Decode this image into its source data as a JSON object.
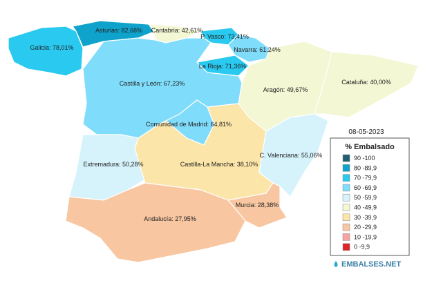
{
  "regions": [
    {
      "label": "Galicia: 78,01%",
      "color": "#29c9f0"
    },
    {
      "label": "Asturias: 82,68%",
      "color": "#0fa3cc"
    },
    {
      "label": "Cantabria: 42,61%",
      "color": "#f3f7d4"
    },
    {
      "label": "P. Vasco: 73,41%",
      "color": "#29c9f0"
    },
    {
      "label": "Navarra: 61,24%",
      "color": "#80dcfb"
    },
    {
      "label": "La Rioja: 71,36%",
      "color": "#29c9f0"
    },
    {
      "label": "Aragón: 49,67%",
      "color": "#f3f7d4"
    },
    {
      "label": "Cataluña: 40,00%",
      "color": "#f3f7d4"
    },
    {
      "label": "Castilla y León: 67,23%",
      "color": "#80dcfb"
    },
    {
      "label": "Comunidad de Madrid: 64,81%",
      "color": "#80dcfb"
    },
    {
      "label": "Extremadura: 50,28%",
      "color": "#d6f3fb"
    },
    {
      "label": "Castilla-La Mancha: 38,10%",
      "color": "#fbe5a8"
    },
    {
      "label": "C. Valenciana: 55,06%",
      "color": "#d6f3fb"
    },
    {
      "label": "Murcia: 28,38%",
      "color": "#f8c6a0"
    },
    {
      "label": "Andalucía: 27,95%",
      "color": "#f8c6a0"
    }
  ],
  "legend": {
    "date": "08-05-2023",
    "title": "% Embalsado",
    "items": [
      {
        "label": "90 -100",
        "color": "#1f5f6f"
      },
      {
        "label": "80 -89,9",
        "color": "#0fa3cc"
      },
      {
        "label": "70 -79,9",
        "color": "#29c9f0"
      },
      {
        "label": "60 -69,9",
        "color": "#80dcfb"
      },
      {
        "label": "50 -59,9",
        "color": "#d6f3fb"
      },
      {
        "label": "40 -49,9",
        "color": "#f3f7d4"
      },
      {
        "label": "30 -39,9",
        "color": "#fbe5a8"
      },
      {
        "label": "20 -29,9",
        "color": "#f8c6a0"
      },
      {
        "label": "10 -19,9",
        "color": "#f7a3a3"
      },
      {
        "label": "0 -9,9",
        "color": "#e0232a"
      }
    ]
  },
  "brand": "EMBALSES.NET"
}
